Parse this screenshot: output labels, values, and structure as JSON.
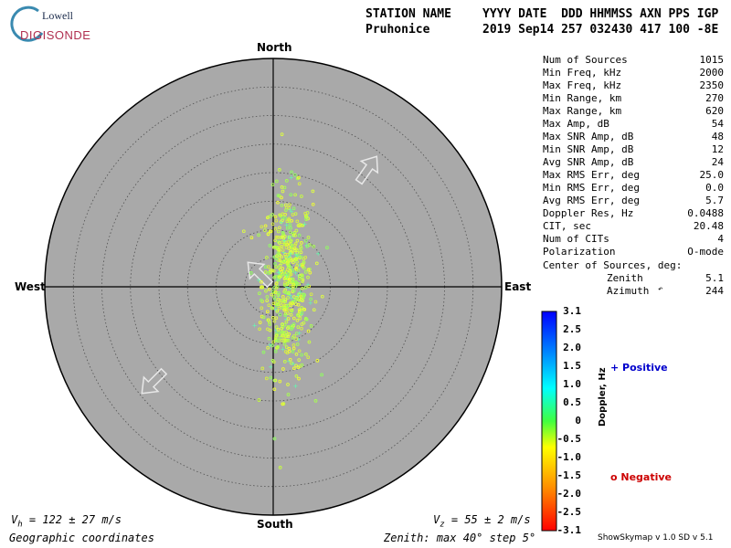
{
  "logo": {
    "top": "Lowell",
    "bottom": "DIGISONDE"
  },
  "header": {
    "label_station": "STATION NAME",
    "label_fields": "YYYY DATE  DDD HHMMSS AXN PPS IGP",
    "station": "Pruhonice",
    "values": "2019 Sep14 257 032430 417 100 -8E"
  },
  "directions": {
    "north": "North",
    "south": "South",
    "east": "East",
    "west": "West"
  },
  "stats": [
    {
      "label": "Num of Sources",
      "value": "1015"
    },
    {
      "label": "Min Freq, kHz",
      "value": "2000"
    },
    {
      "label": "Max Freq, kHz",
      "value": "2350"
    },
    {
      "label": "Min Range, km",
      "value": "270"
    },
    {
      "label": "Max Range, km",
      "value": "620"
    },
    {
      "label": "Max Amp, dB",
      "value": "54"
    },
    {
      "label": "Max SNR Amp, dB",
      "value": "48"
    },
    {
      "label": "Min SNR Amp, dB",
      "value": "12"
    },
    {
      "label": "Avg SNR Amp, dB",
      "value": "24"
    },
    {
      "label": "Max RMS Err, deg",
      "value": "25.0"
    },
    {
      "label": "Min RMS Err, deg",
      "value": "0.0"
    },
    {
      "label": "Avg RMS Err, deg",
      "value": "5.7"
    },
    {
      "label": "Doppler Res, Hz",
      "value": "0.0488"
    },
    {
      "label": "CIT, sec",
      "value": "20.48"
    },
    {
      "label": "Num of CITs",
      "value": "4"
    },
    {
      "label": "Polarization",
      "value": "O-mode"
    }
  ],
  "center": {
    "title": "Center of Sources, deg:",
    "zenith_label": "Zenith",
    "zenith_value": "5.1",
    "azimuth_label": "Azimuth",
    "azimuth_value": "244"
  },
  "colorbar": {
    "ticks": [
      "3.1",
      "2.5",
      "2.0",
      "1.5",
      "1.0",
      "0.5",
      "0",
      "-0.5",
      "-1.0",
      "-1.5",
      "-2.0",
      "-2.5",
      "-3.1"
    ],
    "label": "Doppler, Hz",
    "min": -3.1,
    "max": 3.1
  },
  "legend": {
    "positive": "+ Positive",
    "negative": "o Negative",
    "positive_color": "#0000cc",
    "negative_color": "#cc0000"
  },
  "velocity": {
    "vh_sym": "V",
    "vh_sub": "h",
    "vh_text": " = 122 ± 27 m/s",
    "vz_sym": "V",
    "vz_sub": "z",
    "vz_text": " = 55 ± 2 m/s"
  },
  "footer": {
    "coords": "Geographic coordinates",
    "zenith": "Zenith: max 40°  step 5°",
    "version": "ShowSkymap v 1.0  SD v 5.1"
  },
  "chart_data": {
    "type": "scatter",
    "projection": "polar skymap",
    "zenith_max_deg": 40,
    "zenith_step_deg": 5,
    "background_color": "#a9a9a9",
    "cluster": {
      "center_x_deg": 2.5,
      "center_y_deg": 0.5,
      "spread_x_deg": 2.2,
      "spread_y_deg": 8.0,
      "count": 1015,
      "dominant_doppler_hz": -0.3
    },
    "arrows_azimuth_deg": [
      35,
      315,
      225
    ]
  }
}
